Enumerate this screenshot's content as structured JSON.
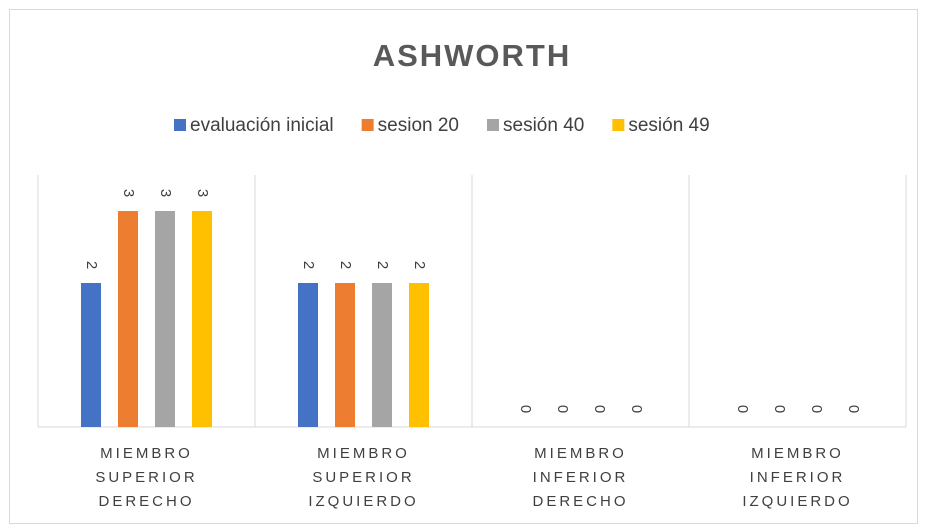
{
  "chart_data": {
    "type": "bar",
    "title": "ASHWORTH",
    "categories": [
      "MIEMBRO SUPERIOR DERECHO",
      "MIEMBRO SUPERIOR IZQUIERDO",
      "MIEMBRO INFERIOR DERECHO",
      "MIEMBRO INFERIOR IZQUIERDO"
    ],
    "series": [
      {
        "name": "evaluación inicial",
        "color": "#4472c4",
        "values": [
          2,
          2,
          0,
          0
        ]
      },
      {
        "name": "sesion 20",
        "color": "#ed7d31",
        "values": [
          3,
          2,
          0,
          0
        ]
      },
      {
        "name": "sesión 40",
        "color": "#a5a5a5",
        "values": [
          3,
          2,
          0,
          0
        ]
      },
      {
        "name": "sesión 49",
        "color": "#ffc000",
        "values": [
          3,
          2,
          0,
          0
        ]
      }
    ],
    "ylim": [
      0,
      3.5
    ],
    "legend": "top"
  }
}
